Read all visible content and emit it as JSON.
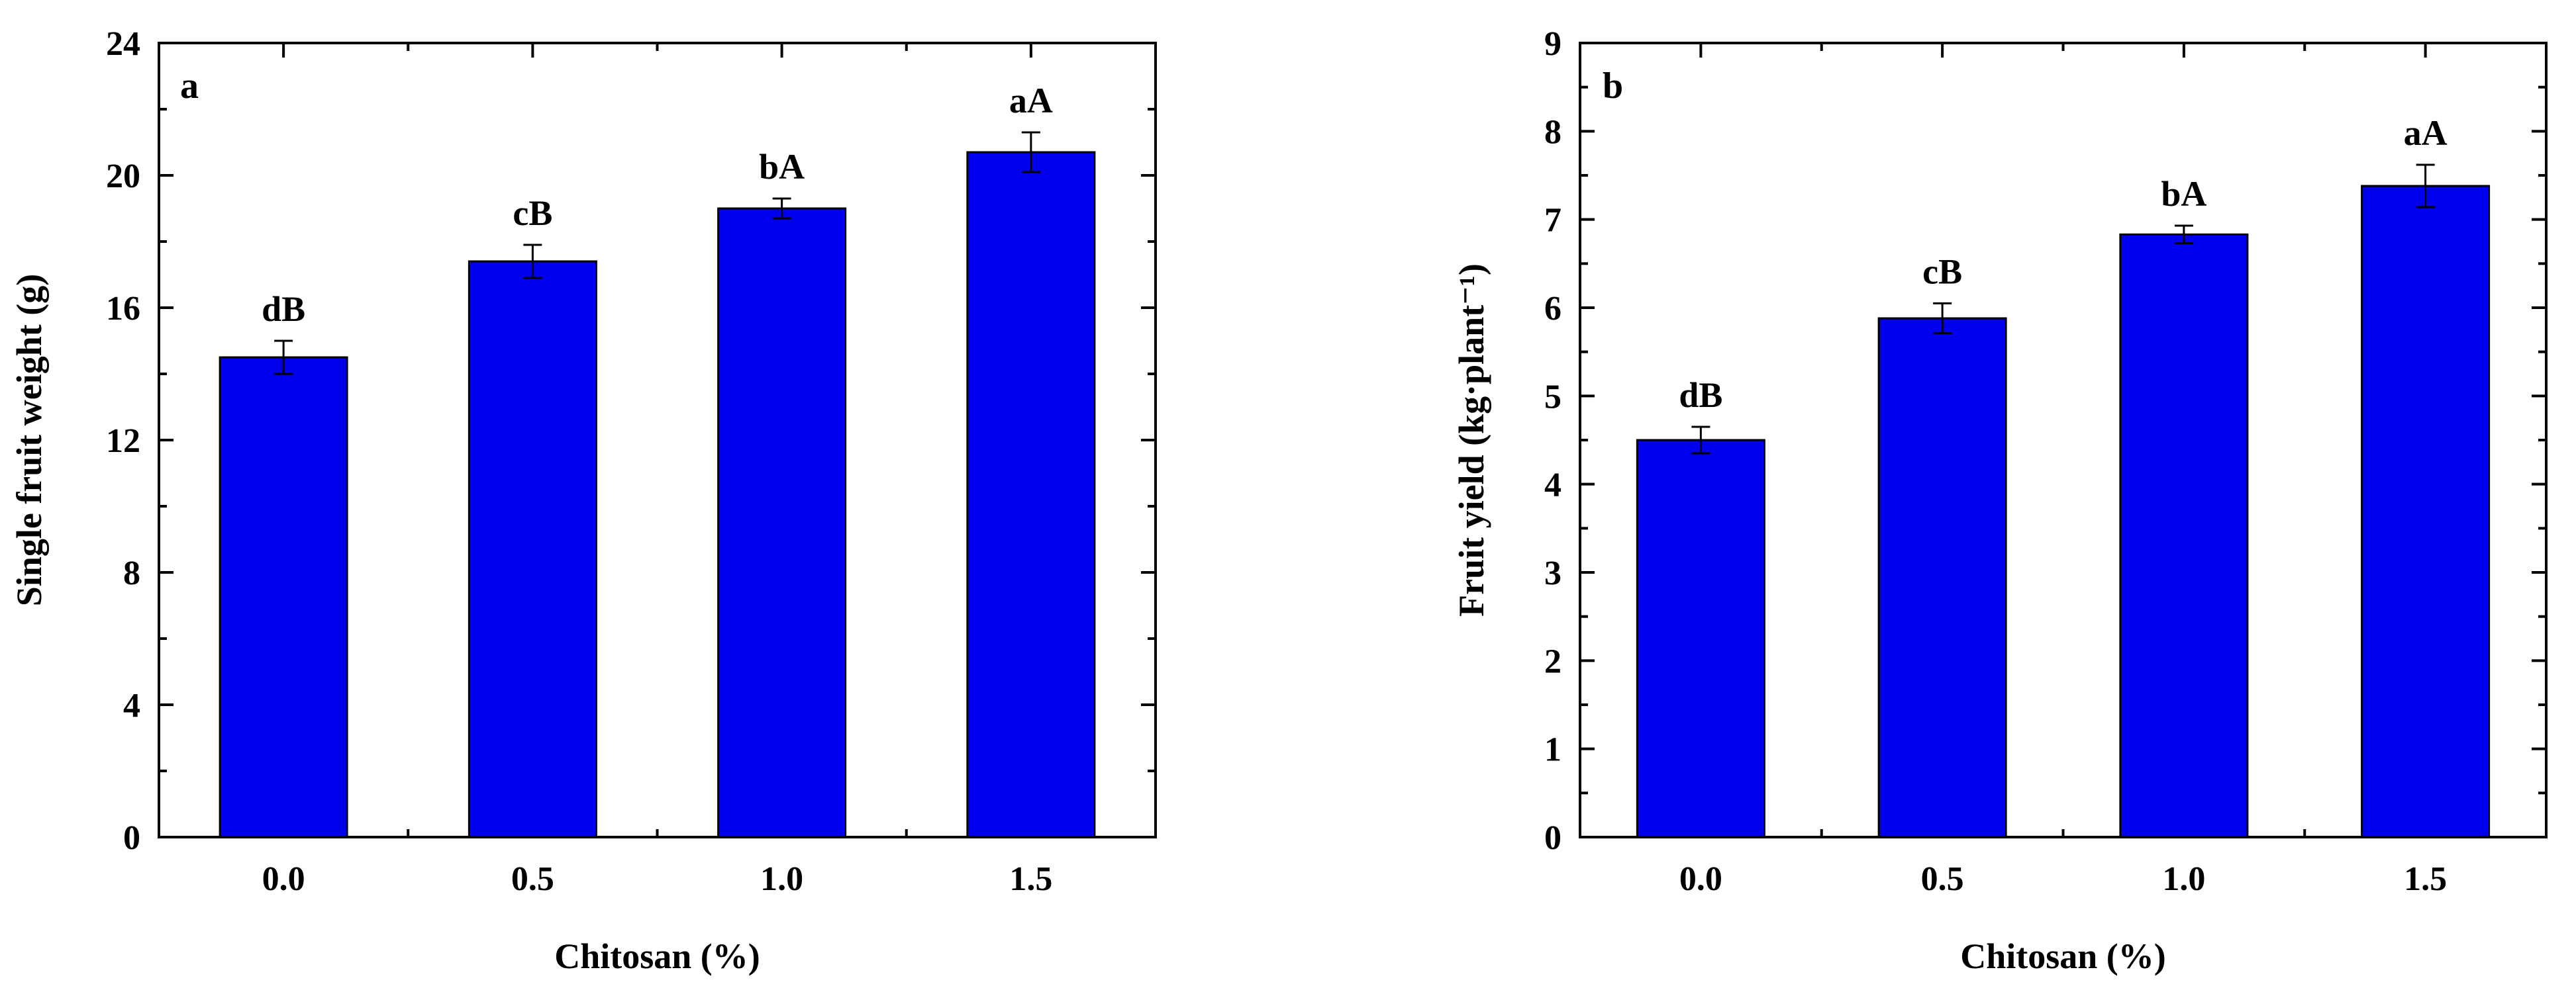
{
  "chart_data": [
    {
      "type": "bar",
      "panel": "a",
      "categories": [
        "0.0",
        "0.5",
        "1.0",
        "1.5"
      ],
      "values": [
        14.5,
        17.4,
        19.0,
        20.7
      ],
      "errors": [
        0.5,
        0.5,
        0.3,
        0.6
      ],
      "labels": [
        "dB",
        "cB",
        "bA",
        "aA"
      ],
      "xlabel": "Chitosan (%)",
      "ylabel": "Single fruit weight (g)",
      "ylim": [
        0,
        24
      ],
      "yticks": [
        0,
        4,
        8,
        12,
        16,
        20,
        24
      ],
      "bar_color": "#0000ee"
    },
    {
      "type": "bar",
      "panel": "b",
      "categories": [
        "0.0",
        "0.5",
        "1.0",
        "1.5"
      ],
      "values": [
        4.5,
        5.88,
        6.83,
        7.38
      ],
      "errors": [
        0.15,
        0.17,
        0.1,
        0.24
      ],
      "labels": [
        "dB",
        "cB",
        "bA",
        "aA"
      ],
      "xlabel": "Chitosan (%)",
      "ylabel": "Fruit yield (kg·plant⁻¹)",
      "ylim": [
        0,
        9
      ],
      "yticks": [
        0,
        1,
        2,
        3,
        4,
        5,
        6,
        7,
        8,
        9
      ],
      "bar_color": "#0000ee"
    }
  ]
}
